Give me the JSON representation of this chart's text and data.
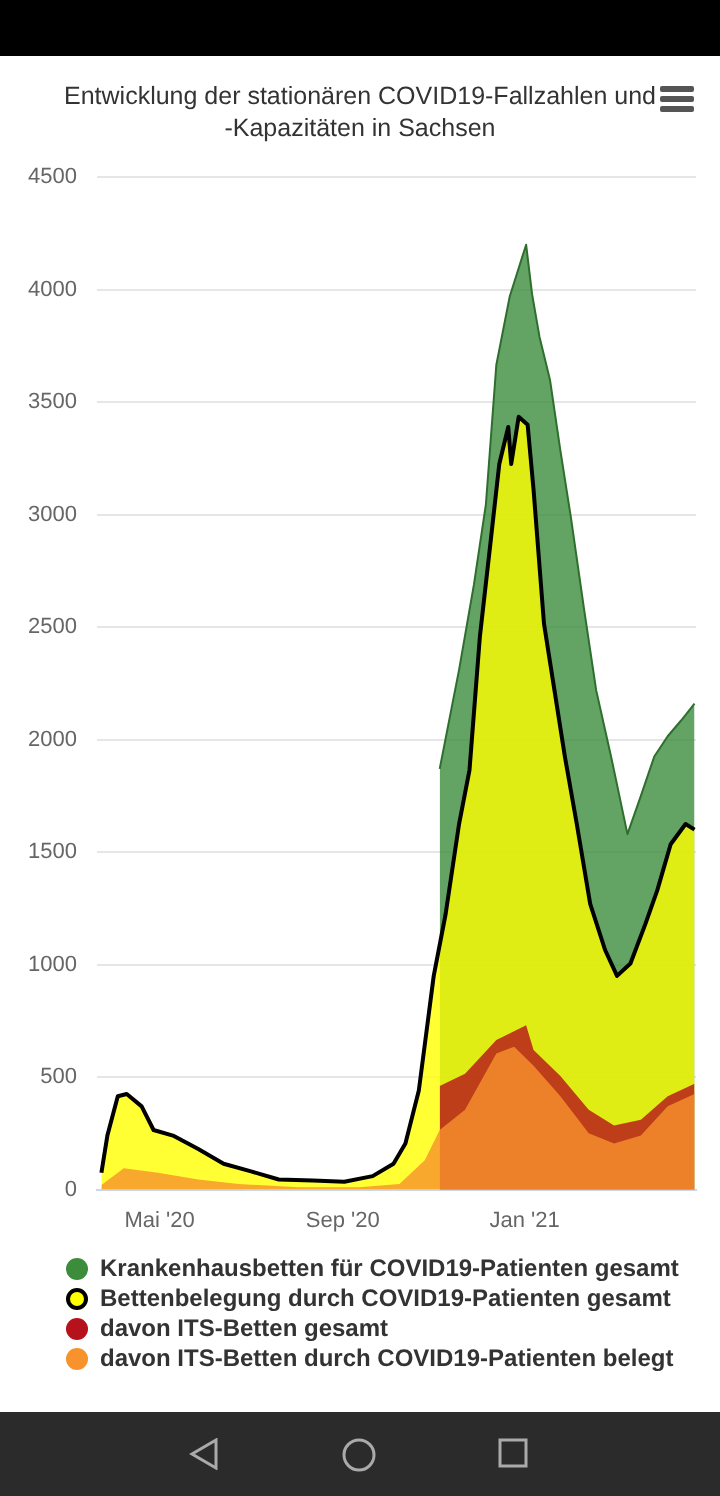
{
  "chart_data": {
    "type": "area",
    "title": "Entwicklung der stationären COVID19-Fallzahlen und -Kapazitäten in Sachsen",
    "xlim": [
      "2020-03-20",
      "2021-04-26"
    ],
    "xticks": [
      {
        "value": "2020-05-01",
        "label": "Mai '20"
      },
      {
        "value": "2020-09-01",
        "label": "Sep '20"
      },
      {
        "value": "2021-01-01",
        "label": "Jan '21"
      }
    ],
    "ylim": [
      0,
      4500
    ],
    "yticks": [
      0,
      500,
      1000,
      1500,
      2000,
      2500,
      3000,
      3500,
      4000,
      4500
    ],
    "grid": "y",
    "legend": "bottom",
    "marker": "none",
    "series": [
      {
        "name": "Krankenhausbetten für COVID19-Patienten gesamt",
        "color": "#3c8c3c",
        "x": [
          "2020-11-05",
          "2020-11-18",
          "2020-11-28",
          "2020-12-06",
          "2020-12-13",
          "2020-12-22",
          "2021-01-02",
          "2021-01-06",
          "2021-01-11",
          "2021-01-18",
          "2021-01-25",
          "2021-02-01",
          "2021-02-10",
          "2021-02-18",
          "2021-02-28",
          "2021-03-04",
          "2021-03-11",
          "2021-03-20",
          "2021-03-29",
          "2021-04-07",
          "2021-04-16",
          "2021-04-25"
        ],
        "values": [
          1870,
          2310,
          2690,
          3045,
          3665,
          3970,
          4200,
          3980,
          3790,
          3600,
          3285,
          2990,
          2575,
          2220,
          1925,
          1800,
          1580,
          1750,
          1925,
          2015,
          2085,
          2160
        ]
      },
      {
        "name": "Bettenbelegung durch COVID19-Patienten gesamt",
        "color": "#ffff00",
        "x": [
          "2020-03-23",
          "2020-03-27",
          "2020-04-03",
          "2020-04-09",
          "2020-04-19",
          "2020-04-27",
          "2020-05-10",
          "2020-05-27",
          "2020-06-13",
          "2020-07-02",
          "2020-07-20",
          "2020-08-12",
          "2020-09-02",
          "2020-09-21",
          "2020-10-05",
          "2020-10-13",
          "2020-10-22",
          "2020-11-01",
          "2020-11-09",
          "2020-11-18",
          "2020-11-25",
          "2020-12-02",
          "2020-12-09",
          "2020-12-15",
          "2020-12-21",
          "2020-12-23",
          "2020-12-28",
          "2021-01-03",
          "2021-01-07",
          "2021-01-14",
          "2021-01-21",
          "2021-01-28",
          "2021-02-05",
          "2021-02-14",
          "2021-02-24",
          "2021-03-04",
          "2021-03-13",
          "2021-03-23",
          "2021-03-31",
          "2021-04-09",
          "2021-04-19",
          "2021-04-25"
        ],
        "values": [
          75,
          240,
          415,
          425,
          370,
          265,
          240,
          180,
          115,
          80,
          45,
          40,
          35,
          60,
          115,
          205,
          440,
          950,
          1225,
          1625,
          1865,
          2460,
          2870,
          3225,
          3390,
          3225,
          3435,
          3400,
          3110,
          2515,
          2220,
          1925,
          1625,
          1270,
          1065,
          950,
          1005,
          1180,
          1330,
          1535,
          1625,
          1600
        ]
      },
      {
        "name": "davon ITS-Betten gesamt",
        "color": "#b5121b",
        "x": [
          "2020-11-05",
          "2020-11-22",
          "2020-12-13",
          "2021-01-02",
          "2021-01-07",
          "2021-01-25",
          "2021-02-13",
          "2021-03-02",
          "2021-03-20",
          "2021-04-07",
          "2021-04-25"
        ],
        "values": [
          460,
          515,
          665,
          730,
          620,
          505,
          355,
          285,
          310,
          415,
          470
        ]
      },
      {
        "name": "davon ITS-Betten durch COVID19-Patienten belegt",
        "color": "#f7922d",
        "x": [
          "2020-03-23",
          "2020-04-07",
          "2020-04-30",
          "2020-05-27",
          "2020-06-23",
          "2020-08-02",
          "2020-09-12",
          "2020-10-09",
          "2020-10-26",
          "2020-11-05",
          "2020-11-22",
          "2020-12-13",
          "2020-12-25",
          "2021-01-07",
          "2021-01-25",
          "2021-02-13",
          "2021-03-02",
          "2021-03-20",
          "2021-04-07",
          "2021-04-25"
        ],
        "values": [
          20,
          95,
          75,
          45,
          25,
          10,
          10,
          25,
          130,
          265,
          355,
          605,
          635,
          550,
          415,
          250,
          205,
          240,
          370,
          425
        ]
      }
    ]
  }
}
